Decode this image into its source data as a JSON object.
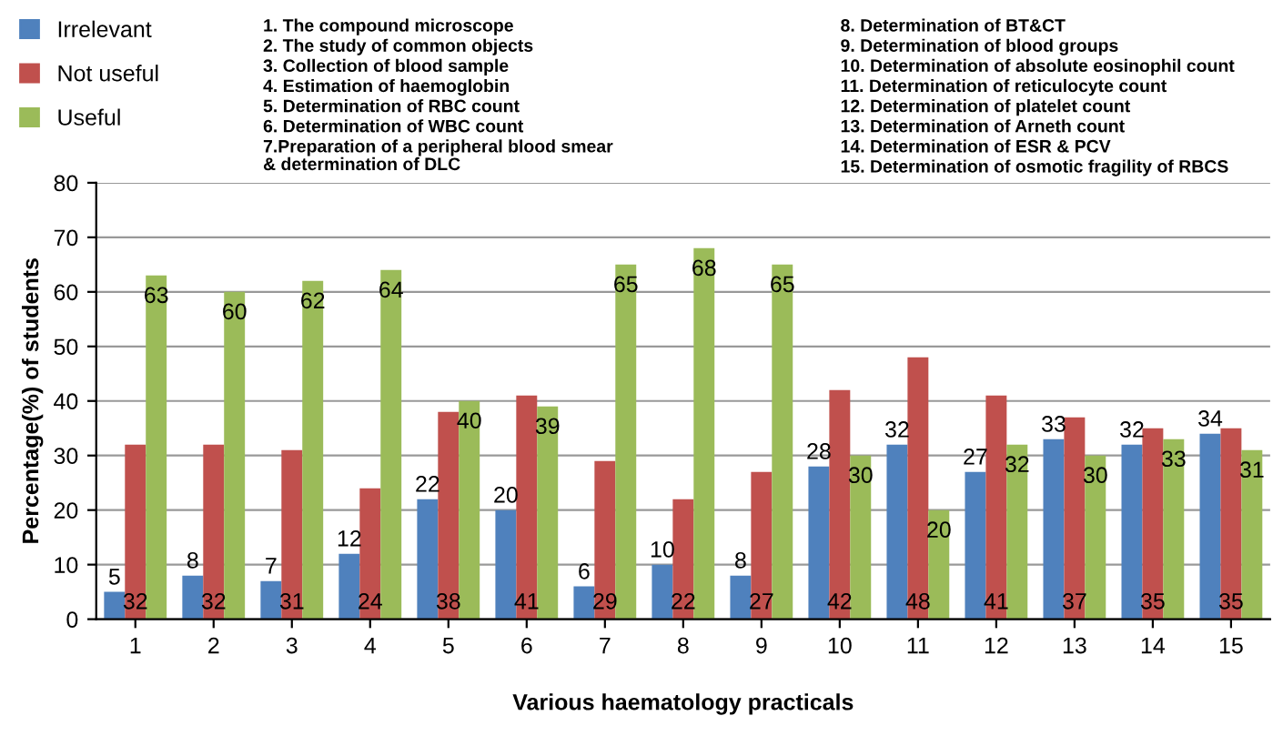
{
  "chart_data": {
    "type": "bar",
    "xlabel": "Various haematology practicals",
    "ylabel": "Percentage(%) of students",
    "categories": [
      "1",
      "2",
      "3",
      "4",
      "5",
      "6",
      "7",
      "8",
      "9",
      "10",
      "11",
      "12",
      "13",
      "14",
      "15"
    ],
    "series": [
      {
        "name": "Irrelevant",
        "color": "#4f81bd",
        "values": [
          5,
          8,
          7,
          12,
          22,
          20,
          6,
          10,
          8,
          28,
          32,
          27,
          33,
          32,
          34
        ]
      },
      {
        "name": "Not useful",
        "color": "#c0504d",
        "values": [
          32,
          32,
          31,
          24,
          38,
          41,
          29,
          22,
          27,
          42,
          48,
          41,
          37,
          35,
          35
        ]
      },
      {
        "name": "Useful",
        "color": "#9bbb59",
        "values": [
          63,
          60,
          62,
          64,
          40,
          39,
          65,
          68,
          65,
          30,
          20,
          32,
          30,
          33,
          31
        ]
      }
    ],
    "ylim": [
      0,
      80
    ],
    "yticks": [
      0,
      10,
      20,
      30,
      40,
      50,
      60,
      70,
      80
    ],
    "grid": "y",
    "legend": "top left",
    "data_labels": true,
    "annotations": [
      "1. The compound microscope",
      "2. The study of common objects",
      "3. Collection of blood sample",
      "4. Estimation of haemoglobin",
      "5. Determination of RBC count",
      "6. Determination of WBC count",
      "7.Preparation of a peripheral blood smear\n& determination of DLC",
      "8. Determination of BT&CT",
      "9. Determination of blood groups",
      "10. Determination of absolute eosinophil count",
      "11. Determination of reticulocyte count",
      "12. Determination of platelet count",
      "13. Determination of Arneth count",
      "14. Determination of ESR & PCV",
      "15. Determination of osmotic fragility of RBCS"
    ]
  }
}
